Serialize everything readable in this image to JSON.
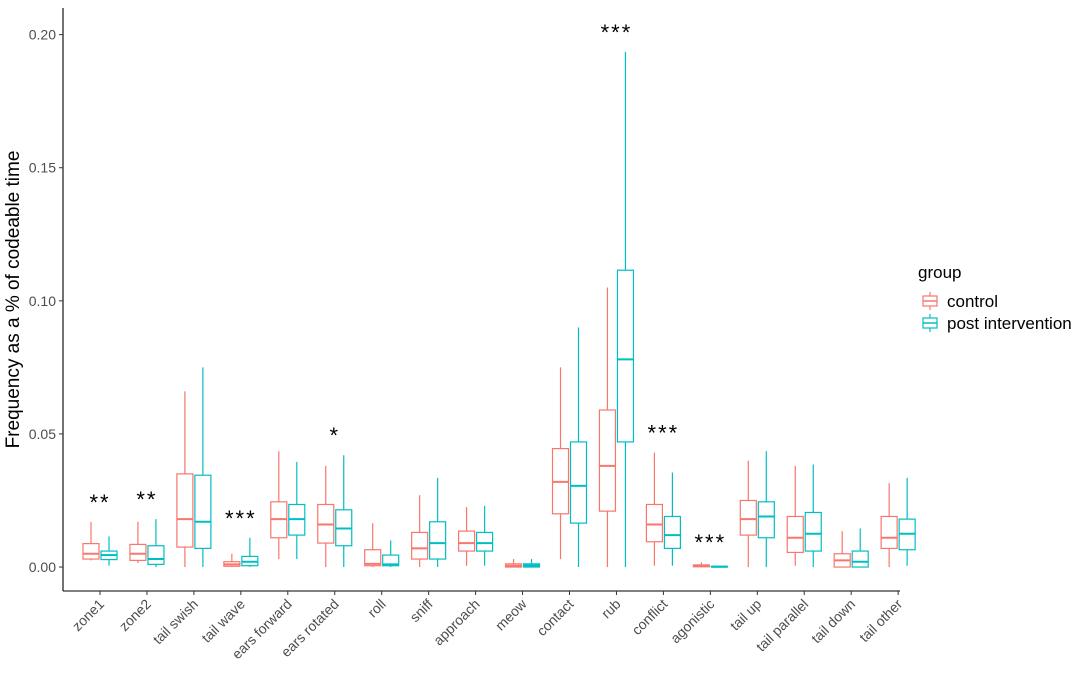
{
  "chart_data": {
    "type": "boxplot",
    "title": "",
    "xlabel": "",
    "ylabel": "Frequency as a % of codeable time",
    "ylim": [
      -0.009,
      0.21
    ],
    "yticks": [
      0.0,
      0.05,
      0.1,
      0.15,
      0.2
    ],
    "ytick_labels": [
      "0.00",
      "0.05",
      "0.10",
      "0.15",
      "0.20"
    ],
    "grid": false,
    "legend_position": "right",
    "legend_title": "group",
    "categories": [
      "zone1",
      "zone2",
      "tail swish",
      "tail wave",
      "ears forward",
      "ears rotated",
      "roll",
      "sniff",
      "approach",
      "meow",
      "contact",
      "rub",
      "conflict",
      "agonistic",
      "tail up",
      "tail parallel",
      "tail down",
      "tail other"
    ],
    "significance": [
      "**",
      "**",
      "",
      "***",
      "",
      "*",
      "",
      "",
      "",
      "",
      "",
      "***",
      "***",
      "***",
      "",
      "",
      "",
      ""
    ],
    "series": [
      {
        "name": "control",
        "color": "#F8766D",
        "boxes": [
          {
            "min": 0.0025,
            "q1": 0.003,
            "median": 0.005,
            "q3": 0.0088,
            "max": 0.017
          },
          {
            "min": 0.0015,
            "q1": 0.0025,
            "median": 0.005,
            "q3": 0.0085,
            "max": 0.017
          },
          {
            "min": 0.0,
            "q1": 0.0075,
            "median": 0.018,
            "q3": 0.035,
            "max": 0.066
          },
          {
            "min": 0.0,
            "q1": 0.0003,
            "median": 0.001,
            "q3": 0.002,
            "max": 0.005
          },
          {
            "min": 0.003,
            "q1": 0.011,
            "median": 0.018,
            "q3": 0.0245,
            "max": 0.0435
          },
          {
            "min": 0.0,
            "q1": 0.009,
            "median": 0.016,
            "q3": 0.0235,
            "max": 0.038
          },
          {
            "min": 0.0,
            "q1": 0.0005,
            "median": 0.0012,
            "q3": 0.0065,
            "max": 0.0165
          },
          {
            "min": 0.0,
            "q1": 0.003,
            "median": 0.007,
            "q3": 0.013,
            "max": 0.027
          },
          {
            "min": 0.0005,
            "q1": 0.006,
            "median": 0.009,
            "q3": 0.0135,
            "max": 0.0225
          },
          {
            "min": 0.0,
            "q1": 0.0,
            "median": 0.0005,
            "q3": 0.0012,
            "max": 0.003
          },
          {
            "min": 0.003,
            "q1": 0.02,
            "median": 0.032,
            "q3": 0.0445,
            "max": 0.075
          },
          {
            "min": 0.0,
            "q1": 0.021,
            "median": 0.038,
            "q3": 0.059,
            "max": 0.105
          },
          {
            "min": 0.0005,
            "q1": 0.0095,
            "median": 0.016,
            "q3": 0.0235,
            "max": 0.043
          },
          {
            "min": 0.0,
            "q1": 0.0001,
            "median": 0.0004,
            "q3": 0.0008,
            "max": 0.0018
          },
          {
            "min": 0.0,
            "q1": 0.012,
            "median": 0.018,
            "q3": 0.025,
            "max": 0.04
          },
          {
            "min": 0.0005,
            "q1": 0.0055,
            "median": 0.011,
            "q3": 0.019,
            "max": 0.038
          },
          {
            "min": 0.0,
            "q1": 0.0,
            "median": 0.0025,
            "q3": 0.005,
            "max": 0.0135
          },
          {
            "min": 0.0,
            "q1": 0.007,
            "median": 0.011,
            "q3": 0.019,
            "max": 0.0315
          }
        ]
      },
      {
        "name": "post intervention",
        "color": "#00BFC4",
        "boxes": [
          {
            "min": 0.0005,
            "q1": 0.0028,
            "median": 0.0045,
            "q3": 0.006,
            "max": 0.0115
          },
          {
            "min": 0.0,
            "q1": 0.001,
            "median": 0.003,
            "q3": 0.008,
            "max": 0.018
          },
          {
            "min": 0.0,
            "q1": 0.007,
            "median": 0.017,
            "q3": 0.0345,
            "max": 0.075
          },
          {
            "min": 0.0,
            "q1": 0.0005,
            "median": 0.002,
            "q3": 0.004,
            "max": 0.011
          },
          {
            "min": 0.003,
            "q1": 0.012,
            "median": 0.018,
            "q3": 0.0235,
            "max": 0.0395
          },
          {
            "min": 0.0,
            "q1": 0.008,
            "median": 0.0145,
            "q3": 0.0215,
            "max": 0.042
          },
          {
            "min": 0.0,
            "q1": 0.0005,
            "median": 0.001,
            "q3": 0.0045,
            "max": 0.01
          },
          {
            "min": 0.0,
            "q1": 0.003,
            "median": 0.009,
            "q3": 0.017,
            "max": 0.0335
          },
          {
            "min": 0.0005,
            "q1": 0.006,
            "median": 0.009,
            "q3": 0.013,
            "max": 0.023
          },
          {
            "min": 0.0,
            "q1": 0.0,
            "median": 0.0006,
            "q3": 0.0012,
            "max": 0.003
          },
          {
            "min": 0.0,
            "q1": 0.0165,
            "median": 0.0305,
            "q3": 0.047,
            "max": 0.09
          },
          {
            "min": 0.0,
            "q1": 0.047,
            "median": 0.078,
            "q3": 0.1115,
            "max": 0.1935
          },
          {
            "min": 0.0005,
            "q1": 0.007,
            "median": 0.012,
            "q3": 0.019,
            "max": 0.0355
          },
          {
            "min": 0.0,
            "q1": 0.0,
            "median": 0.0001,
            "q3": 0.0003,
            "max": 0.0005
          },
          {
            "min": 0.0,
            "q1": 0.011,
            "median": 0.019,
            "q3": 0.0245,
            "max": 0.0435
          },
          {
            "min": 0.0,
            "q1": 0.006,
            "median": 0.0125,
            "q3": 0.0205,
            "max": 0.0385
          },
          {
            "min": 0.0,
            "q1": 0.0,
            "median": 0.002,
            "q3": 0.006,
            "max": 0.0145
          },
          {
            "min": 0.0005,
            "q1": 0.0065,
            "median": 0.0125,
            "q3": 0.018,
            "max": 0.0335
          }
        ]
      }
    ]
  }
}
